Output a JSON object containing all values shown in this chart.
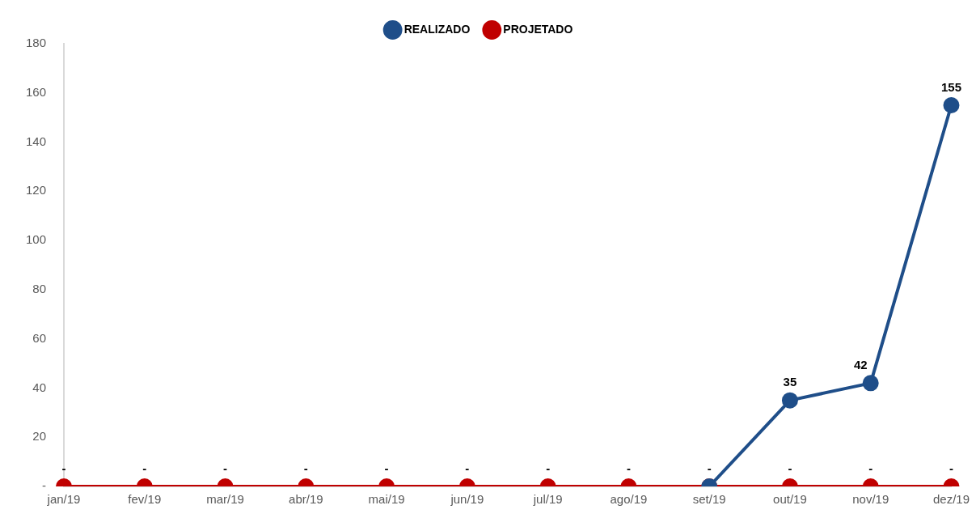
{
  "chart_data": {
    "type": "line",
    "categories": [
      "jan/19",
      "fev/19",
      "mar/19",
      "abr/19",
      "mai/19",
      "jun/19",
      "jul/19",
      "ago/19",
      "set/19",
      "out/19",
      "nov/19",
      "dez/19"
    ],
    "series": [
      {
        "name": "REALIZADO",
        "color": "#1f4e89",
        "values": [
          null,
          null,
          null,
          null,
          null,
          null,
          null,
          null,
          0,
          35,
          42,
          155
        ],
        "value_labels": [
          null,
          null,
          null,
          null,
          null,
          null,
          null,
          null,
          null,
          "35",
          "42",
          "155"
        ]
      },
      {
        "name": "PROJETADO",
        "color": "#c00000",
        "values": [
          0,
          0,
          0,
          0,
          0,
          0,
          0,
          0,
          0,
          0,
          0,
          0
        ],
        "value_labels": [
          "-",
          "-",
          "-",
          "-",
          "-",
          "-",
          "-",
          "-",
          "-",
          "-",
          "-",
          "-"
        ]
      }
    ],
    "ylim": [
      0,
      180
    ],
    "yticks": [
      {
        "value": 0,
        "label": "-"
      },
      20,
      40,
      60,
      80,
      100,
      120,
      140,
      160,
      180
    ],
    "grid": false,
    "legend": "top",
    "marker": "circle",
    "line_style": "solid"
  }
}
